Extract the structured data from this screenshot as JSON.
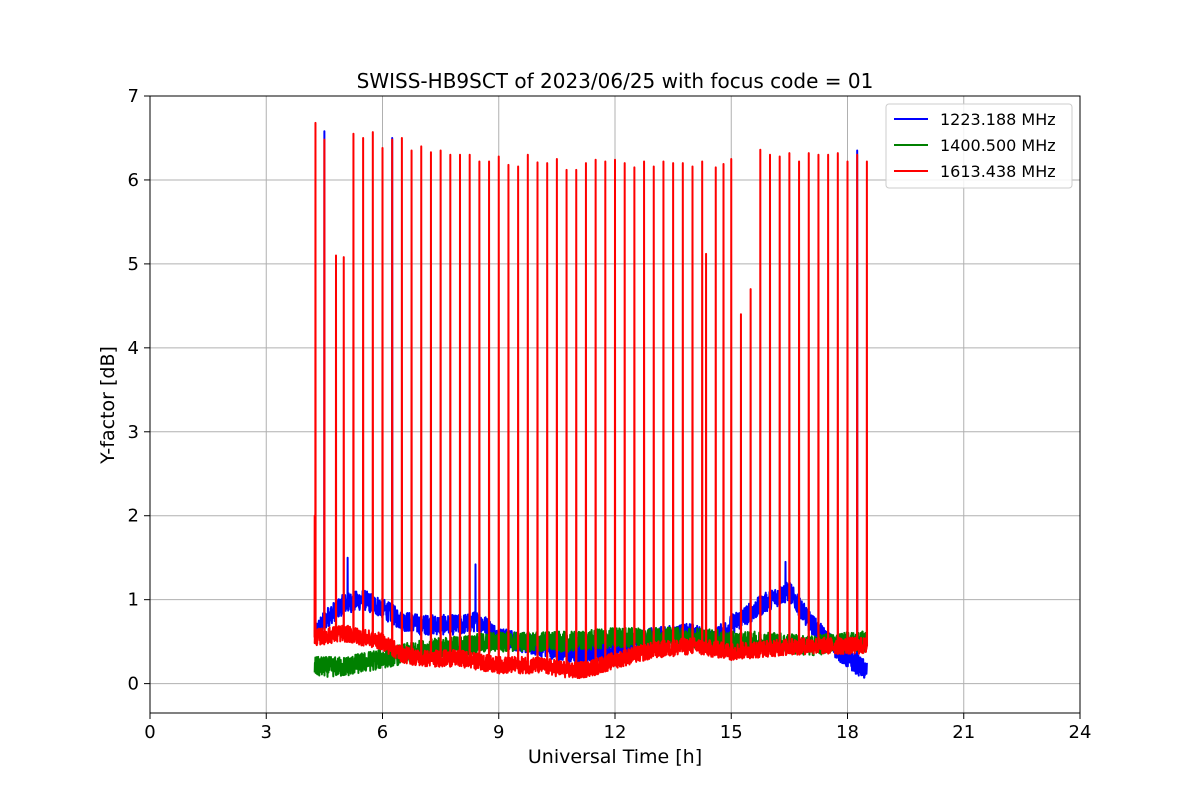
{
  "chart_data": {
    "type": "line",
    "title": "SWISS-HB9SCT of 2023/06/25 with focus code = 01",
    "xlabel": "Universal Time [h]",
    "ylabel": "Y-factor [dB]",
    "xlim": [
      0,
      24
    ],
    "ylim": [
      -0.35,
      7
    ],
    "xticks": [
      0,
      3,
      6,
      9,
      12,
      15,
      18,
      21,
      24
    ],
    "yticks": [
      0,
      1,
      2,
      3,
      4,
      5,
      6,
      7
    ],
    "grid": true,
    "legend_position": "top-right",
    "x_range_of_data": [
      4.25,
      18.5
    ],
    "series": [
      {
        "name": "1223.188 MHz",
        "color": "#0000ff",
        "baseline_profile": [
          [
            4.25,
            0.6
          ],
          [
            4.6,
            0.8
          ],
          [
            5.0,
            0.95
          ],
          [
            5.5,
            1.0
          ],
          [
            6.0,
            0.9
          ],
          [
            6.5,
            0.75
          ],
          [
            7.0,
            0.7
          ],
          [
            8.0,
            0.7
          ],
          [
            8.5,
            0.75
          ],
          [
            9.0,
            0.55
          ],
          [
            10.0,
            0.45
          ],
          [
            11.0,
            0.35
          ],
          [
            12.0,
            0.42
          ],
          [
            13.0,
            0.55
          ],
          [
            14.0,
            0.6
          ],
          [
            14.5,
            0.5
          ],
          [
            15.0,
            0.7
          ],
          [
            15.5,
            0.85
          ],
          [
            16.0,
            1.0
          ],
          [
            16.5,
            1.1
          ],
          [
            17.0,
            0.75
          ],
          [
            17.5,
            0.5
          ],
          [
            18.0,
            0.3
          ],
          [
            18.5,
            0.15
          ]
        ],
        "noise_amplitude": 0.12,
        "spikes": [
          [
            4.5,
            6.58
          ],
          [
            5.1,
            1.5
          ],
          [
            6.25,
            6.5
          ],
          [
            8.4,
            1.42
          ],
          [
            16.4,
            1.45
          ],
          [
            18.25,
            6.35
          ]
        ]
      },
      {
        "name": "1400.500 MHz",
        "color": "#008000",
        "baseline_profile": [
          [
            4.25,
            0.2
          ],
          [
            5.0,
            0.2
          ],
          [
            6.0,
            0.3
          ],
          [
            7.0,
            0.4
          ],
          [
            8.0,
            0.45
          ],
          [
            9.0,
            0.5
          ],
          [
            10.0,
            0.5
          ],
          [
            11.0,
            0.5
          ],
          [
            12.0,
            0.55
          ],
          [
            13.0,
            0.55
          ],
          [
            14.0,
            0.55
          ],
          [
            15.0,
            0.5
          ],
          [
            16.0,
            0.5
          ],
          [
            17.0,
            0.45
          ],
          [
            18.0,
            0.5
          ],
          [
            18.5,
            0.5
          ]
        ],
        "noise_amplitude": 0.12,
        "spikes": []
      },
      {
        "name": "1613.438 MHz",
        "color": "#ff0000",
        "baseline_profile": [
          [
            4.25,
            0.55
          ],
          [
            5.0,
            0.6
          ],
          [
            6.0,
            0.5
          ],
          [
            6.5,
            0.35
          ],
          [
            7.0,
            0.3
          ],
          [
            8.0,
            0.3
          ],
          [
            9.0,
            0.22
          ],
          [
            10.0,
            0.22
          ],
          [
            11.0,
            0.15
          ],
          [
            11.5,
            0.2
          ],
          [
            12.0,
            0.28
          ],
          [
            13.0,
            0.4
          ],
          [
            14.0,
            0.45
          ],
          [
            15.0,
            0.38
          ],
          [
            16.0,
            0.42
          ],
          [
            17.0,
            0.45
          ],
          [
            18.0,
            0.45
          ],
          [
            18.5,
            0.45
          ]
        ],
        "noise_amplitude": 0.1,
        "spikes": [
          [
            4.25,
            2.0
          ],
          [
            4.27,
            6.68
          ],
          [
            4.5,
            6.48
          ],
          [
            4.8,
            5.1
          ],
          [
            5.0,
            5.08
          ],
          [
            5.25,
            6.55
          ],
          [
            5.5,
            6.5
          ],
          [
            5.75,
            6.57
          ],
          [
            6.0,
            6.38
          ],
          [
            6.25,
            6.48
          ],
          [
            6.5,
            6.5
          ],
          [
            6.75,
            6.35
          ],
          [
            7.0,
            6.4
          ],
          [
            7.25,
            6.33
          ],
          [
            7.5,
            6.35
          ],
          [
            7.75,
            6.3
          ],
          [
            8.0,
            6.3
          ],
          [
            8.25,
            6.3
          ],
          [
            8.5,
            6.22
          ],
          [
            8.75,
            6.22
          ],
          [
            9.0,
            6.28
          ],
          [
            9.25,
            6.18
          ],
          [
            9.5,
            6.16
          ],
          [
            9.75,
            6.3
          ],
          [
            10.0,
            6.21
          ],
          [
            10.25,
            6.2
          ],
          [
            10.5,
            6.25
          ],
          [
            10.75,
            6.12
          ],
          [
            11.0,
            6.12
          ],
          [
            11.25,
            6.2
          ],
          [
            11.5,
            6.24
          ],
          [
            11.75,
            6.22
          ],
          [
            12.0,
            6.24
          ],
          [
            12.25,
            6.2
          ],
          [
            12.5,
            6.15
          ],
          [
            12.75,
            6.22
          ],
          [
            13.0,
            6.16
          ],
          [
            13.25,
            6.22
          ],
          [
            13.5,
            6.2
          ],
          [
            13.75,
            6.2
          ],
          [
            14.0,
            6.16
          ],
          [
            14.25,
            6.22
          ],
          [
            14.35,
            5.12
          ],
          [
            14.6,
            6.15
          ],
          [
            14.8,
            6.19
          ],
          [
            15.0,
            6.25
          ],
          [
            15.25,
            4.4
          ],
          [
            15.5,
            4.7
          ],
          [
            15.75,
            6.36
          ],
          [
            16.0,
            6.3
          ],
          [
            16.25,
            6.28
          ],
          [
            16.5,
            6.32
          ],
          [
            16.75,
            6.22
          ],
          [
            17.0,
            6.32
          ],
          [
            17.25,
            6.3
          ],
          [
            17.5,
            6.3
          ],
          [
            17.75,
            6.32
          ],
          [
            18.0,
            6.22
          ],
          [
            18.25,
            6.3
          ],
          [
            18.5,
            6.22
          ]
        ]
      }
    ]
  }
}
